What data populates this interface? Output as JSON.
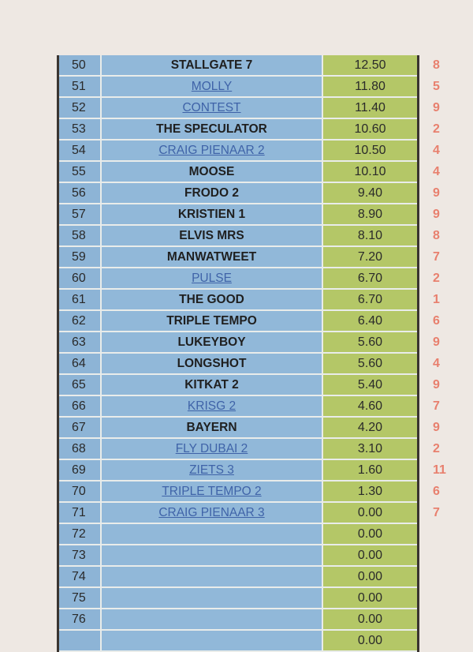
{
  "rows": [
    {
      "num": "50",
      "name": "STALLGATE 7",
      "link": false,
      "value": "12.50",
      "rank": "8"
    },
    {
      "num": "51",
      "name": "MOLLY",
      "link": true,
      "value": "11.80",
      "rank": "5"
    },
    {
      "num": "52",
      "name": "CONTEST",
      "link": true,
      "value": "11.40",
      "rank": "9"
    },
    {
      "num": "53",
      "name": "THE SPECULATOR",
      "link": false,
      "value": "10.60",
      "rank": "2"
    },
    {
      "num": "54",
      "name": "CRAIG PIENAAR 2",
      "link": true,
      "value": "10.50",
      "rank": "4"
    },
    {
      "num": "55",
      "name": "MOOSE",
      "link": false,
      "value": "10.10",
      "rank": "4"
    },
    {
      "num": "56",
      "name": "FRODO 2",
      "link": false,
      "value": "9.40",
      "rank": "9"
    },
    {
      "num": "57",
      "name": "KRISTIEN 1",
      "link": false,
      "value": "8.90",
      "rank": "9"
    },
    {
      "num": "58",
      "name": "ELVIS MRS",
      "link": false,
      "value": "8.10",
      "rank": "8"
    },
    {
      "num": "59",
      "name": "MANWATWEET",
      "link": false,
      "value": "7.20",
      "rank": "7"
    },
    {
      "num": "60",
      "name": "PULSE",
      "link": true,
      "value": "6.70",
      "rank": "2"
    },
    {
      "num": "61",
      "name": "THE GOOD",
      "link": false,
      "value": "6.70",
      "rank": "1"
    },
    {
      "num": "62",
      "name": "TRIPLE TEMPO",
      "link": false,
      "value": "6.40",
      "rank": "6"
    },
    {
      "num": "63",
      "name": "LUKEYBOY",
      "link": false,
      "value": "5.60",
      "rank": "9"
    },
    {
      "num": "64",
      "name": "LONGSHOT",
      "link": false,
      "value": "5.60",
      "rank": "4"
    },
    {
      "num": "65",
      "name": "KITKAT 2",
      "link": false,
      "value": "5.40",
      "rank": "9"
    },
    {
      "num": "66",
      "name": "KRISG  2",
      "link": true,
      "value": "4.60",
      "rank": "7"
    },
    {
      "num": "67",
      "name": "BAYERN",
      "link": false,
      "value": "4.20",
      "rank": "9"
    },
    {
      "num": "68",
      "name": "FLY DUBAI 2",
      "link": true,
      "value": "3.10",
      "rank": "2"
    },
    {
      "num": "69",
      "name": "ZIETS 3",
      "link": true,
      "value": "1.60",
      "rank": "11"
    },
    {
      "num": "70",
      "name": "TRIPLE TEMPO  2",
      "link": true,
      "value": "1.30",
      "rank": "6"
    },
    {
      "num": "71",
      "name": "CRAIG PIENAAR 3",
      "link": true,
      "value": "0.00",
      "rank": "7"
    },
    {
      "num": "72",
      "name": "",
      "link": false,
      "value": "0.00",
      "rank": ""
    },
    {
      "num": "73",
      "name": "",
      "link": false,
      "value": "0.00",
      "rank": ""
    },
    {
      "num": "74",
      "name": "",
      "link": false,
      "value": "0.00",
      "rank": ""
    },
    {
      "num": "75",
      "name": "",
      "link": false,
      "value": "0.00",
      "rank": ""
    },
    {
      "num": "76",
      "name": "",
      "link": false,
      "value": "0.00",
      "rank": ""
    },
    {
      "num": "",
      "name": "",
      "link": false,
      "value": "0.00",
      "rank": ""
    }
  ]
}
